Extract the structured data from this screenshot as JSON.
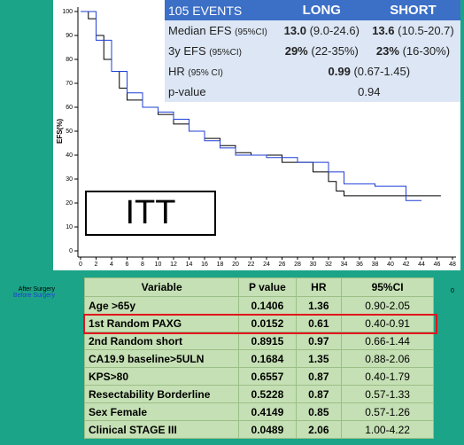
{
  "chart_data": {
    "type": "step",
    "y_label": "EFS(%)",
    "xlim": [
      0,
      48
    ],
    "ylim": [
      0,
      100
    ],
    "xticks": [
      0,
      2,
      4,
      6,
      8,
      10,
      12,
      14,
      16,
      18,
      20,
      22,
      24,
      26,
      28,
      30,
      32,
      34,
      36,
      38,
      40,
      42,
      44,
      46,
      48
    ],
    "yticks": [
      0,
      10,
      20,
      30,
      40,
      50,
      60,
      70,
      80,
      90,
      100
    ],
    "series": [
      {
        "color": "#000000",
        "x": [
          0,
          1,
          2,
          3,
          4,
          5,
          6,
          8,
          10,
          12,
          14,
          16,
          18,
          20,
          22,
          26,
          30,
          32,
          33,
          34,
          46.5
        ],
        "values": [
          100,
          97,
          90,
          80,
          75,
          68,
          63,
          60,
          57,
          53,
          50,
          47,
          44,
          41,
          40,
          37,
          33,
          29,
          25,
          23,
          23
        ]
      },
      {
        "color": "#1f3fd6",
        "x": [
          0,
          2,
          4,
          6,
          8,
          10,
          12,
          14,
          16,
          18,
          20,
          24,
          28,
          32,
          34,
          38,
          42,
          44
        ],
        "values": [
          100,
          88,
          75,
          66,
          60,
          58,
          55,
          50,
          46,
          43,
          40,
          39,
          37,
          33,
          28,
          27,
          21,
          21
        ]
      }
    ],
    "annotation": "ITT",
    "risk_labels": [
      "After Surgery",
      "Before Surgery"
    ],
    "risk_value": "0"
  },
  "summary_table": {
    "header": [
      "105 EVENTS",
      "LONG",
      "SHORT"
    ],
    "rows": [
      {
        "label": "Median EFS",
        "label_note": "(95%CI)",
        "long": {
          "value": "13.0",
          "ci": "(9.0-24.6)"
        },
        "short": {
          "value": "13.6",
          "ci": "(10.5-20.7)"
        }
      },
      {
        "label": "3y EFS",
        "label_note": "(95%CI)",
        "long": {
          "value": "29%",
          "ci": "(22-35%)"
        },
        "short": {
          "value": "23%",
          "ci": "(16-30%)"
        }
      },
      {
        "label": "HR",
        "label_note": "(95% CI)",
        "combined": {
          "value": "0.99",
          "ci": "(0.67-1.45)"
        }
      },
      {
        "label": "p-value",
        "combined": {
          "value": "0.94"
        }
      }
    ]
  },
  "table": {
    "header": [
      "Variable",
      "P value",
      "HR",
      "95%CI"
    ],
    "rows": [
      [
        "Age >65y",
        "0.1406",
        "1.36",
        "0.90-2.05"
      ],
      [
        "1st Random PAXG",
        "0.0152",
        "0.61",
        "0.40-0.91"
      ],
      [
        "2nd Random short",
        "0.8915",
        "0.97",
        "0.66-1.44"
      ],
      [
        "CA19.9 baseline>5ULN",
        "0.1684",
        "1.35",
        "0.88-2.06"
      ],
      [
        "KPS>80",
        "0.6557",
        "0.87",
        "0.40-1.79"
      ],
      [
        "Resectability Borderline",
        "0.5228",
        "0.87",
        "0.57-1.33"
      ],
      [
        "Sex Female",
        "0.4149",
        "0.85",
        "0.57-1.26"
      ],
      [
        "Clinical STAGE III",
        "0.0489",
        "2.06",
        "1.00-4.22"
      ]
    ]
  }
}
